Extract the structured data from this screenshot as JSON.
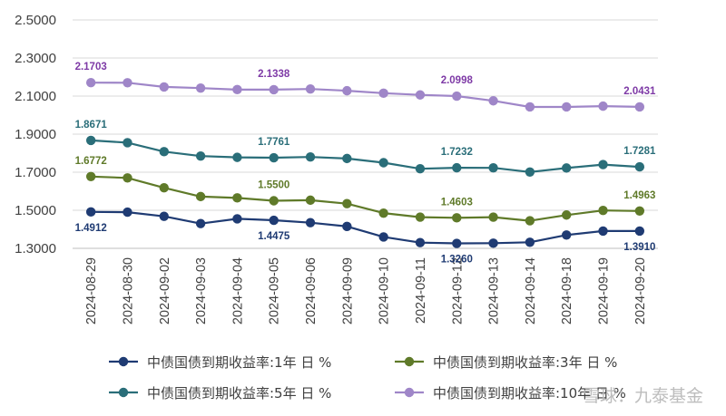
{
  "chart_data": {
    "type": "line",
    "title": "",
    "xlabel": "",
    "ylabel": "",
    "categories": [
      "2024-08-29",
      "2024-08-30",
      "2024-09-02",
      "2024-09-03",
      "2024-09-04",
      "2024-09-05",
      "2024-09-06",
      "2024-09-09",
      "2024-09-10",
      "2024-09-11",
      "2024-09-12",
      "2024-09-13",
      "2024-09-14",
      "2024-09-18",
      "2024-09-19",
      "2024-09-20"
    ],
    "ylim": [
      1.3,
      2.5
    ],
    "yticks": [
      "1.3000",
      "1.5000",
      "1.7000",
      "1.9000",
      "2.1000",
      "2.3000",
      "2.5000"
    ],
    "ytick_values": [
      1.3,
      1.5,
      1.7,
      1.9,
      2.1,
      2.3,
      2.5
    ],
    "grid": true,
    "legend_position": "bottom",
    "series": [
      {
        "name": "中债国债到期收益率:1年 日 %",
        "color": "#1f3b73",
        "values": [
          1.4912,
          1.49,
          1.468,
          1.43,
          1.455,
          1.4475,
          1.435,
          1.415,
          1.36,
          1.33,
          1.326,
          1.327,
          1.332,
          1.37,
          1.391,
          1.391
        ],
        "labels": [
          {
            "index": 0,
            "text": "1.4912",
            "pos": "below"
          },
          {
            "index": 5,
            "text": "1.4475",
            "pos": "below"
          },
          {
            "index": 10,
            "text": "1.3260",
            "pos": "below"
          },
          {
            "index": 15,
            "text": "1.3910",
            "pos": "below"
          }
        ]
      },
      {
        "name": "中债国债到期收益率:3年 日 %",
        "color": "#5f7a29",
        "values": [
          1.6772,
          1.67,
          1.618,
          1.572,
          1.565,
          1.55,
          1.553,
          1.535,
          1.485,
          1.464,
          1.4603,
          1.464,
          1.445,
          1.475,
          1.499,
          1.4963
        ],
        "labels": [
          {
            "index": 0,
            "text": "1.6772",
            "pos": "above"
          },
          {
            "index": 5,
            "text": "1.5500",
            "pos": "above"
          },
          {
            "index": 10,
            "text": "1.4603",
            "pos": "above"
          },
          {
            "index": 15,
            "text": "1.4963",
            "pos": "above"
          }
        ]
      },
      {
        "name": "中债国债到期收益率:5年 日 %",
        "color": "#2a6e79",
        "values": [
          1.8671,
          1.855,
          1.808,
          1.785,
          1.778,
          1.7761,
          1.78,
          1.772,
          1.75,
          1.718,
          1.7232,
          1.723,
          1.701,
          1.722,
          1.74,
          1.7281
        ],
        "labels": [
          {
            "index": 0,
            "text": "1.8671",
            "pos": "above"
          },
          {
            "index": 5,
            "text": "1.7761",
            "pos": "above"
          },
          {
            "index": 10,
            "text": "1.7232",
            "pos": "above"
          },
          {
            "index": 15,
            "text": "1.7281",
            "pos": "above"
          }
        ]
      },
      {
        "name": "中债国债到期收益率:10年 日 %",
        "color": "#9f86c8",
        "values": [
          2.1703,
          2.17,
          2.148,
          2.142,
          2.134,
          2.1338,
          2.137,
          2.128,
          2.115,
          2.106,
          2.0998,
          2.075,
          2.043,
          2.043,
          2.047,
          2.0431
        ],
        "labels": [
          {
            "index": 0,
            "text": "2.1703",
            "pos": "above"
          },
          {
            "index": 5,
            "text": "2.1338",
            "pos": "above"
          },
          {
            "index": 10,
            "text": "2.0998",
            "pos": "above"
          },
          {
            "index": 15,
            "text": "2.0431",
            "pos": "above"
          }
        ]
      }
    ]
  },
  "label_colors": {
    "s0": "#1f3b73",
    "s1": "#5f7a29",
    "s2": "#2a6e79",
    "s3": "#7e3aa6"
  },
  "watermark": "雪球：九泰基金"
}
